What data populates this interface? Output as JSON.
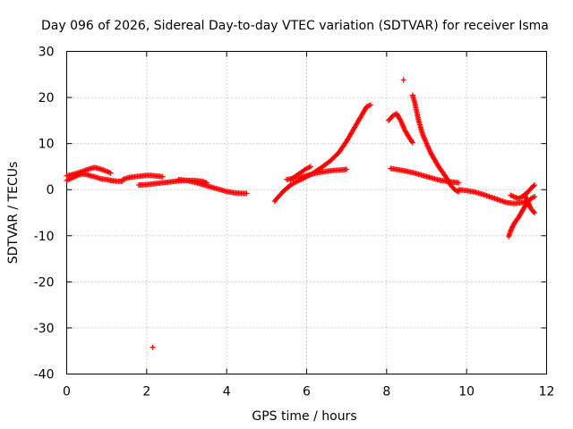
{
  "chart_data": {
    "type": "scatter",
    "title": "Day 096 of 2026, Sidereal Day-to-day VTEC variation (SDTVAR) for receiver Isma",
    "xlabel": "GPS time / hours",
    "ylabel": "SDTVAR / TECUs",
    "xlim": [
      0,
      12
    ],
    "ylim": [
      -40,
      30
    ],
    "xticks": [
      0,
      2,
      4,
      6,
      8,
      10,
      12
    ],
    "yticks": [
      -40,
      -30,
      -20,
      -10,
      0,
      10,
      20,
      30
    ],
    "grid": true,
    "marker": "+",
    "color": "#ff0000",
    "series": [
      {
        "name": "seg-upper-early",
        "x": [
          0.0,
          0.1,
          0.2,
          0.3,
          0.4,
          0.5,
          0.6,
          0.7,
          0.8,
          0.9,
          1.0,
          1.1
        ],
        "y": [
          3.0,
          3.2,
          3.4,
          3.7,
          4.0,
          4.3,
          4.6,
          4.8,
          4.6,
          4.3,
          4.0,
          3.6
        ]
      },
      {
        "name": "seg-lower-early",
        "x": [
          0.0,
          0.1,
          0.2,
          0.3,
          0.4,
          0.5,
          0.6,
          0.7,
          0.8,
          0.9,
          1.0,
          1.1,
          1.2,
          1.3,
          1.4
        ],
        "y": [
          2.0,
          2.4,
          2.8,
          3.2,
          3.4,
          3.3,
          3.0,
          2.8,
          2.5,
          2.3,
          2.2,
          2.0,
          1.9,
          1.8,
          1.8
        ]
      },
      {
        "name": "seg-morning",
        "x": [
          1.4,
          1.5,
          1.6,
          1.7,
          1.8,
          1.9,
          2.0,
          2.1,
          2.2,
          2.3,
          2.4
        ],
        "y": [
          2.2,
          2.5,
          2.7,
          2.8,
          2.9,
          3.0,
          3.1,
          3.1,
          3.0,
          2.9,
          2.8
        ]
      },
      {
        "name": "seg-midday",
        "x": [
          1.8,
          2.0,
          2.2,
          2.4,
          2.6,
          2.8,
          3.0,
          3.2,
          3.4,
          3.5
        ],
        "y": [
          1.0,
          1.1,
          1.3,
          1.5,
          1.7,
          1.9,
          2.0,
          2.0,
          1.8,
          1.5
        ]
      },
      {
        "name": "seg-decline",
        "x": [
          2.8,
          3.0,
          3.2,
          3.4,
          3.6,
          3.8,
          4.0,
          4.2,
          4.4,
          4.5
        ],
        "y": [
          2.2,
          2.0,
          1.6,
          1.1,
          0.6,
          0.1,
          -0.4,
          -0.7,
          -0.8,
          -0.8
        ]
      },
      {
        "name": "outlier",
        "x": [
          2.15
        ],
        "y": [
          -34.2
        ]
      },
      {
        "name": "seg-dip",
        "x": [
          5.2,
          5.3,
          5.4,
          5.5,
          5.6,
          5.7,
          5.8,
          5.9
        ],
        "y": [
          -2.5,
          -1.5,
          -0.5,
          0.3,
          1.0,
          1.5,
          2.0,
          2.4
        ]
      },
      {
        "name": "seg-spike",
        "x": [
          5.6,
          5.7,
          5.8,
          5.9,
          6.0,
          6.1
        ],
        "y": [
          2.2,
          2.8,
          3.4,
          4.0,
          4.6,
          5.0
        ]
      },
      {
        "name": "seg-flat",
        "x": [
          5.5,
          5.7,
          5.9,
          6.1,
          6.3,
          6.5,
          6.7,
          6.9,
          7.0
        ],
        "y": [
          2.2,
          2.5,
          2.8,
          3.3,
          3.7,
          4.0,
          4.2,
          4.3,
          4.4
        ]
      },
      {
        "name": "seg-rise",
        "x": [
          5.8,
          6.0,
          6.2,
          6.4,
          6.6,
          6.8,
          7.0,
          7.2,
          7.4,
          7.5,
          7.6
        ],
        "y": [
          2.0,
          2.8,
          3.8,
          5.0,
          6.3,
          8.0,
          10.5,
          13.5,
          16.5,
          18.0,
          18.4
        ]
      },
      {
        "name": "seg-post-eight",
        "x": [
          8.1,
          8.3,
          8.5,
          8.7,
          8.9,
          9.1,
          9.3,
          9.5,
          9.7,
          9.8
        ],
        "y": [
          4.6,
          4.3,
          4.0,
          3.6,
          3.1,
          2.6,
          2.1,
          1.8,
          1.6,
          1.5
        ]
      },
      {
        "name": "seg-high-peak",
        "x": [
          8.05,
          8.15,
          8.25,
          8.35,
          8.45,
          8.55,
          8.65
        ],
        "y": [
          15.0,
          16.0,
          16.5,
          15.0,
          13.0,
          11.5,
          10.2
        ]
      },
      {
        "name": "seg-steep-drop",
        "x": [
          8.65,
          8.7,
          8.8,
          8.9,
          9.0,
          9.1,
          9.2,
          9.3,
          9.4,
          9.5,
          9.6,
          9.7,
          9.8
        ],
        "y": [
          20.5,
          19.0,
          15.0,
          12.0,
          10.0,
          8.0,
          6.5,
          5.0,
          3.8,
          2.5,
          1.0,
          0.0,
          -0.5
        ]
      },
      {
        "name": "isolated-point",
        "x": [
          8.42
        ],
        "y": [
          23.8
        ]
      },
      {
        "name": "seg-evening",
        "x": [
          9.8,
          10.0,
          10.2,
          10.4,
          10.6,
          10.8,
          11.0,
          11.2,
          11.4,
          11.5
        ],
        "y": [
          0.0,
          -0.2,
          -0.5,
          -1.0,
          -1.6,
          -2.2,
          -2.8,
          -3.0,
          -2.8,
          -2.5
        ]
      },
      {
        "name": "seg-late-upper",
        "x": [
          11.1,
          11.2,
          11.3,
          11.4,
          11.5,
          11.6,
          11.7
        ],
        "y": [
          -1.2,
          -1.6,
          -1.9,
          -1.5,
          -0.8,
          0.2,
          1.0
        ]
      },
      {
        "name": "seg-late-lower",
        "x": [
          11.05,
          11.1,
          11.15,
          11.2,
          11.3,
          11.4,
          11.5,
          11.6,
          11.7
        ],
        "y": [
          -10.2,
          -9.0,
          -8.0,
          -7.2,
          -6.0,
          -4.5,
          -3.0,
          -2.0,
          -1.5
        ]
      },
      {
        "name": "seg-late-tail",
        "x": [
          11.45,
          11.5,
          11.55,
          11.6,
          11.65,
          11.7
        ],
        "y": [
          -1.0,
          -2.0,
          -3.0,
          -4.0,
          -4.6,
          -5.0
        ]
      }
    ]
  }
}
